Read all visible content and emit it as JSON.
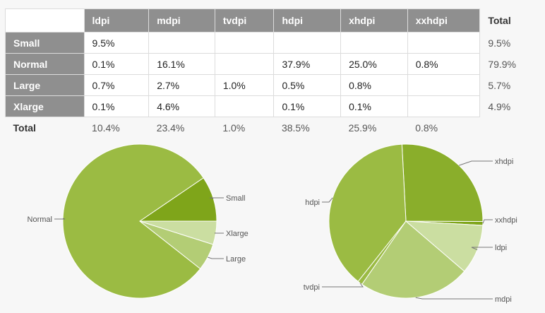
{
  "table": {
    "columns": [
      "ldpi",
      "mdpi",
      "tvdpi",
      "hdpi",
      "xhdpi",
      "xxhdpi",
      "Total"
    ],
    "rows": [
      {
        "label": "Small",
        "cells": [
          "9.5%",
          "",
          "",
          "",
          "",
          ""
        ],
        "total": "9.5%"
      },
      {
        "label": "Normal",
        "cells": [
          "0.1%",
          "16.1%",
          "",
          "37.9%",
          "25.0%",
          "0.8%"
        ],
        "total": "79.9%"
      },
      {
        "label": "Large",
        "cells": [
          "0.7%",
          "2.7%",
          "1.0%",
          "0.5%",
          "0.8%",
          ""
        ],
        "total": "5.7%"
      },
      {
        "label": "Xlarge",
        "cells": [
          "0.1%",
          "4.6%",
          "",
          "0.1%",
          "0.1%",
          ""
        ],
        "total": "4.9%"
      }
    ],
    "totals": {
      "label": "Total",
      "cells": [
        "10.4%",
        "23.4%",
        "1.0%",
        "38.5%",
        "25.9%",
        "0.8%"
      ]
    }
  },
  "chart_data": [
    {
      "type": "pie",
      "series": [
        {
          "name": "Small",
          "value": 9.5,
          "color": "#7fa51a"
        },
        {
          "name": "Normal",
          "value": 79.9,
          "color": "#9bbb43"
        },
        {
          "name": "Large",
          "value": 5.7,
          "color": "#b3cd75"
        },
        {
          "name": "Xlarge",
          "value": 4.9,
          "color": "#cbdea1"
        }
      ]
    },
    {
      "type": "pie",
      "series": [
        {
          "name": "ldpi",
          "value": 10.4,
          "color": "#cbdea1"
        },
        {
          "name": "mdpi",
          "value": 23.4,
          "color": "#b3cd75"
        },
        {
          "name": "tvdpi",
          "value": 1.0,
          "color": "#9bbb43"
        },
        {
          "name": "hdpi",
          "value": 38.5,
          "color": "#9bbb43"
        },
        {
          "name": "xhdpi",
          "value": 25.9,
          "color": "#8aae2b"
        },
        {
          "name": "xxhdpi",
          "value": 0.8,
          "color": "#7fa51a"
        }
      ]
    }
  ]
}
